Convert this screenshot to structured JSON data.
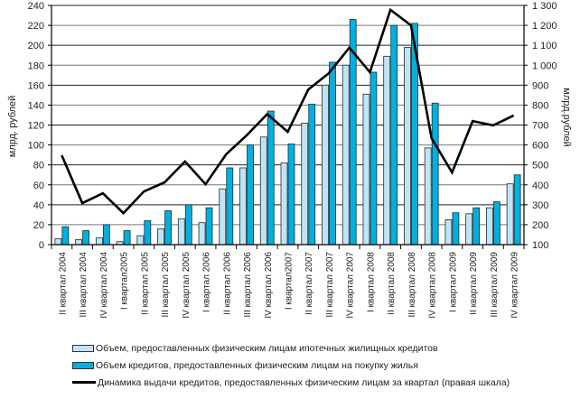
{
  "chart_data": {
    "type": "bar+line",
    "title": "",
    "ylabel": "млрд. рублей",
    "y2label": "млрд.рублей",
    "ylim": [
      0,
      240
    ],
    "y2lim": [
      100,
      1300
    ],
    "yticks": [
      "0",
      "20",
      "40",
      "60",
      "80",
      "100",
      "120",
      "140",
      "160",
      "180",
      "200",
      "220",
      "240"
    ],
    "y2ticks": [
      "100",
      "200",
      "300",
      "400",
      "500",
      "600",
      "700",
      "800",
      "900",
      "1 000",
      "1 100",
      "1 200",
      "1 300"
    ],
    "grid": true,
    "legend_position": "bottom",
    "categories": [
      "II квартал 2004",
      "III квартал 2004",
      "IV квартал 2004",
      "I квартал2005",
      "II квартал 2005",
      "III квартал 2005",
      "IV квартал 2005",
      "I квартал 2006",
      "II квартал 2006",
      "III квартал 2006",
      "IV квартал 2006",
      "I квартал2007",
      "II квартал 2007",
      "III квартал 2007",
      "IV квартал 2007",
      "I квартал 2008",
      "II квартал 2008",
      "III квартал 2008",
      "IV квартал 2008",
      "I квартал 2009",
      "II квартал 2009",
      "III квартал 2009",
      "IV квартал 2009"
    ],
    "series": [
      {
        "name": "Объем, предоставленных физическим лицам ипотечных  жилищных кредитов",
        "type": "bar",
        "axis": "left",
        "color": "#bfe4f6",
        "values": [
          6,
          5,
          7,
          3,
          9,
          16,
          26,
          22,
          56,
          77,
          108,
          82,
          122,
          160,
          180,
          151,
          189,
          198,
          97,
          25,
          31,
          37,
          61
        ]
      },
      {
        "name": "Объем кредитов, предоставленных физическим лицам  на покупку жилья",
        "type": "bar",
        "axis": "left",
        "color": "#00b0e0",
        "values": [
          18,
          14,
          20,
          14,
          24,
          34,
          40,
          37,
          77,
          100,
          134,
          101,
          141,
          183,
          226,
          173,
          220,
          222,
          142,
          32,
          37,
          43,
          70
        ]
      },
      {
        "name": "Динамика выдачи кредитов,  предоставленных физическим лицам за квартал (правая шкала)",
        "type": "line",
        "axis": "right",
        "color": "#000000",
        "values": [
          548,
          308,
          358,
          258,
          367,
          412,
          517,
          403,
          553,
          648,
          755,
          666,
          878,
          960,
          1088,
          965,
          1278,
          1200,
          634,
          462,
          720,
          698,
          748
        ]
      }
    ]
  }
}
